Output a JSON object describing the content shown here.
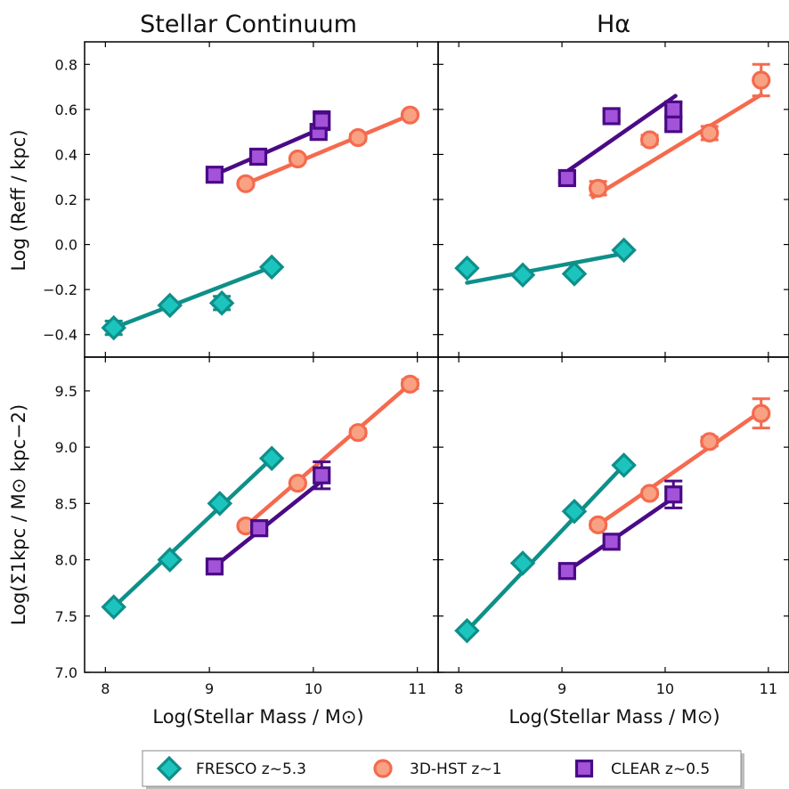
{
  "colors": {
    "fresco": "#0e8f8a",
    "fresco_fill": "#1cc4be",
    "hst": "#f56a4e",
    "hst_fill": "#f9a283",
    "clear": "#4a0a85",
    "clear_fill": "#a353d9"
  },
  "xaxis": {
    "label": "Log(Stellar Mass / M⊙)",
    "ticks": [
      "8",
      "9",
      "10",
      "11"
    ],
    "range": [
      7.8,
      11.2
    ]
  },
  "legend": {
    "placement": "bottom-center",
    "entries": [
      {
        "label": "FRESCO z~5.3",
        "marker": "diamond",
        "series": "fresco"
      },
      {
        "label": "3D-HST z~1",
        "marker": "circle",
        "series": "hst"
      },
      {
        "label": "CLEAR z~0.5",
        "marker": "square",
        "series": "clear"
      }
    ]
  },
  "chart_data": [
    {
      "type": "scatter",
      "panel": "top-left",
      "title": "Stellar Continuum",
      "ylabel": "Log (Reff / kpc)",
      "ylim": [
        -0.5,
        0.9
      ],
      "yticks": [
        "−0.4",
        "−0.2",
        "0.0",
        "0.2",
        "0.4",
        "0.6",
        "0.8"
      ],
      "xlim": [
        7.8,
        11.2
      ],
      "series": [
        {
          "name": "FRESCO z~5.3",
          "key": "fresco",
          "x": [
            8.08,
            8.62,
            9.12,
            9.6
          ],
          "y": [
            -0.37,
            -0.27,
            -0.26,
            -0.1
          ],
          "err": [
            0.03,
            0.01,
            0.03,
            0.01
          ],
          "fit": [
            [
              8.08,
              -0.37
            ],
            [
              9.6,
              -0.1
            ]
          ]
        },
        {
          "name": "3D-HST z~1",
          "key": "hst",
          "x": [
            9.35,
            9.85,
            10.43,
            10.93
          ],
          "y": [
            0.27,
            0.38,
            0.475,
            0.575
          ],
          "err": [
            0.01,
            0.01,
            0.015,
            0.01
          ],
          "fit": [
            [
              9.35,
              0.27
            ],
            [
              10.93,
              0.575
            ]
          ]
        },
        {
          "name": "CLEAR z~0.5",
          "key": "clear",
          "x": [
            9.05,
            9.47,
            10.05,
            10.08
          ],
          "y": [
            0.31,
            0.39,
            0.5,
            0.55
          ],
          "err": [
            0.015,
            0.015,
            0.015,
            0.04
          ],
          "fit": [
            [
              9.05,
              0.31
            ],
            [
              10.05,
              0.51
            ]
          ]
        }
      ]
    },
    {
      "type": "scatter",
      "panel": "top-right",
      "title": "Hα",
      "ylabel": "",
      "ylim": [
        -0.5,
        0.9
      ],
      "yticks": [],
      "xlim": [
        7.8,
        11.2
      ],
      "series": [
        {
          "name": "FRESCO z~5.3",
          "key": "fresco",
          "x": [
            8.08,
            8.62,
            9.12,
            9.6
          ],
          "y": [
            -0.105,
            -0.135,
            -0.13,
            -0.025
          ],
          "err": [
            0.01,
            0.01,
            0.01,
            0.01
          ],
          "fit": [
            [
              8.08,
              -0.17
            ],
            [
              9.6,
              -0.04
            ]
          ]
        },
        {
          "name": "3D-HST z~1",
          "key": "hst",
          "x": [
            9.35,
            9.85,
            10.43,
            10.93
          ],
          "y": [
            0.25,
            0.465,
            0.495,
            0.73
          ],
          "err": [
            0.03,
            0.02,
            0.03,
            0.07
          ],
          "fit": [
            [
              9.3,
              0.21
            ],
            [
              10.93,
              0.665
            ]
          ]
        },
        {
          "name": "CLEAR z~0.5",
          "key": "clear",
          "x": [
            9.05,
            9.48,
            10.08,
            10.08
          ],
          "y": [
            0.295,
            0.57,
            0.535,
            0.6
          ],
          "err": [
            0.02,
            0.02,
            0.025,
            0.03
          ],
          "fit": [
            [
              9.05,
              0.325
            ],
            [
              10.1,
              0.66
            ]
          ]
        }
      ]
    },
    {
      "type": "scatter",
      "panel": "bottom-left",
      "title": "",
      "ylabel": "Log(Σ1kpc / M⊙ kpc−2)",
      "ylim": [
        7.0,
        9.8
      ],
      "yticks": [
        "7.0",
        "7.5",
        "8.0",
        "8.5",
        "9.0",
        "9.5"
      ],
      "xlim": [
        7.8,
        11.2
      ],
      "series": [
        {
          "name": "FRESCO z~5.3",
          "key": "fresco",
          "x": [
            8.08,
            8.62,
            9.1,
            9.6
          ],
          "y": [
            7.58,
            8.0,
            8.5,
            8.9
          ],
          "err": [
            0.01,
            0.01,
            0.01,
            0.01
          ],
          "fit": [
            [
              8.08,
              7.58
            ],
            [
              9.6,
              8.9
            ]
          ]
        },
        {
          "name": "3D-HST z~1",
          "key": "hst",
          "x": [
            9.35,
            9.85,
            10.43,
            10.93
          ],
          "y": [
            8.3,
            8.68,
            9.13,
            9.56
          ],
          "err": [
            0.02,
            0.02,
            0.03,
            0.04
          ],
          "fit": [
            [
              9.35,
              8.3
            ],
            [
              10.93,
              9.56
            ]
          ]
        },
        {
          "name": "CLEAR z~0.5",
          "key": "clear",
          "x": [
            9.05,
            9.48,
            10.08
          ],
          "y": [
            7.94,
            8.28,
            8.75
          ],
          "err": [
            0.02,
            0.02,
            0.12
          ],
          "fit": [
            [
              9.05,
              7.94
            ],
            [
              10.08,
              8.7
            ]
          ]
        }
      ]
    },
    {
      "type": "scatter",
      "panel": "bottom-right",
      "title": "",
      "ylabel": "",
      "ylim": [
        7.0,
        9.8
      ],
      "yticks": [],
      "xlim": [
        7.8,
        11.2
      ],
      "series": [
        {
          "name": "FRESCO z~5.3",
          "key": "fresco",
          "x": [
            8.08,
            8.62,
            9.12,
            9.6
          ],
          "y": [
            7.37,
            7.97,
            8.43,
            8.84
          ],
          "err": [
            0.01,
            0.01,
            0.01,
            0.01
          ],
          "fit": [
            [
              8.08,
              7.37
            ],
            [
              9.6,
              8.84
            ]
          ]
        },
        {
          "name": "3D-HST z~1",
          "key": "hst",
          "x": [
            9.35,
            9.85,
            10.43,
            10.93
          ],
          "y": [
            8.31,
            8.59,
            9.05,
            9.3
          ],
          "err": [
            0.03,
            0.03,
            0.04,
            0.13
          ],
          "fit": [
            [
              9.35,
              8.31
            ],
            [
              10.93,
              9.32
            ]
          ]
        },
        {
          "name": "CLEAR z~0.5",
          "key": "clear",
          "x": [
            9.05,
            9.48,
            10.08
          ],
          "y": [
            7.9,
            8.16,
            8.58
          ],
          "err": [
            0.02,
            0.02,
            0.12
          ],
          "fit": [
            [
              9.05,
              7.9
            ],
            [
              10.08,
              8.55
            ]
          ]
        }
      ]
    }
  ]
}
